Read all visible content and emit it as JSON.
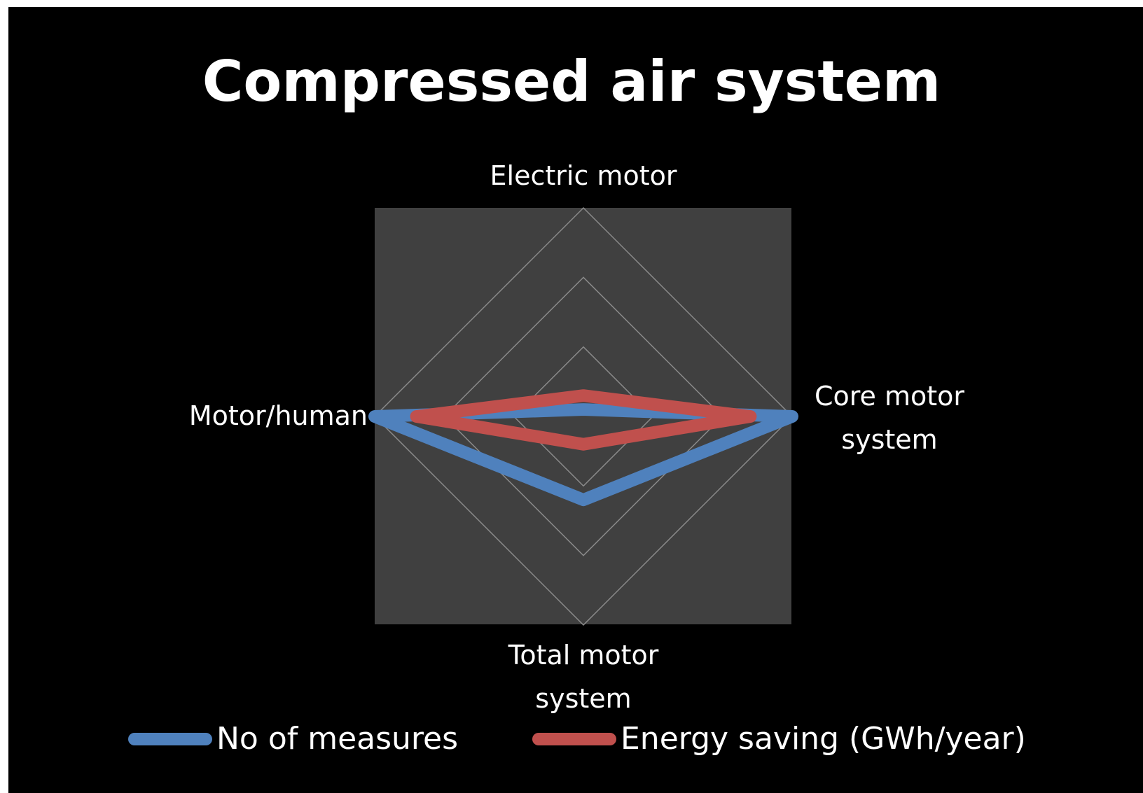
{
  "chart_data": {
    "type": "radar",
    "title": "Compressed air system",
    "categories": [
      "Electric motor",
      "Core motor system",
      "Total motor system",
      "Motor/human"
    ],
    "series": [
      {
        "name": "No of measures",
        "color": "#4f81bd",
        "values": [
          0.1,
          3,
          1.2,
          3
        ]
      },
      {
        "name": "Energy saving (GWh/year)",
        "color": "#c0504d",
        "values": [
          0.3,
          2.4,
          0.4,
          2.4
        ]
      }
    ],
    "rlim": [
      0,
      3
    ],
    "rticks": [
      0,
      1,
      2,
      3
    ],
    "grid": true,
    "legend": "bottom"
  }
}
